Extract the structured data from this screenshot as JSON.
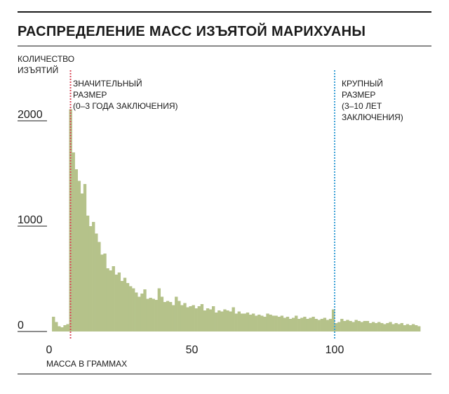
{
  "title": "РАСПРЕДЕЛЕНИЕ МАСС ИЗЪЯТОЙ МАРИХУАНЫ",
  "chart_data": {
    "type": "bar",
    "title": "РАСПРЕДЕЛЕНИЕ МАСС ИЗЪЯТОЙ МАРИХУАНЫ",
    "ylabel_lines": [
      "КОЛИЧЕСТВО",
      "ИЗЪЯТИЙ"
    ],
    "xlabel": "МАССА В ГРАММАХ",
    "xlim": [
      0,
      130
    ],
    "ylim": [
      0,
      2000
    ],
    "x_ticks": [
      0,
      50,
      100
    ],
    "y_ticks": [
      0,
      1000,
      2000
    ],
    "bar_color": "#b5c28a",
    "x": [
      2,
      3,
      4,
      5,
      6,
      7,
      8,
      9,
      10,
      11,
      12,
      13,
      14,
      15,
      16,
      17,
      18,
      19,
      20,
      21,
      22,
      23,
      24,
      25,
      26,
      27,
      28,
      29,
      30,
      31,
      32,
      33,
      34,
      35,
      36,
      37,
      38,
      39,
      40,
      41,
      42,
      43,
      44,
      45,
      46,
      47,
      48,
      49,
      50,
      51,
      52,
      53,
      54,
      55,
      56,
      57,
      58,
      59,
      60,
      61,
      62,
      63,
      64,
      65,
      66,
      67,
      68,
      69,
      70,
      71,
      72,
      73,
      74,
      75,
      76,
      77,
      78,
      79,
      80,
      81,
      82,
      83,
      84,
      85,
      86,
      87,
      88,
      89,
      90,
      91,
      92,
      93,
      94,
      95,
      96,
      97,
      98,
      99,
      100,
      101,
      102,
      103,
      104,
      105,
      106,
      107,
      108,
      109,
      110,
      111,
      112,
      113,
      114,
      115,
      116,
      117,
      118,
      119,
      120,
      121,
      122,
      123,
      124,
      125,
      126,
      127,
      128,
      129,
      130
    ],
    "values": [
      140,
      90,
      50,
      40,
      60,
      70,
      2110,
      1700,
      1540,
      1430,
      1310,
      1400,
      1100,
      1000,
      1040,
      930,
      850,
      730,
      740,
      600,
      580,
      620,
      540,
      560,
      480,
      510,
      460,
      430,
      410,
      370,
      330,
      360,
      400,
      310,
      320,
      310,
      300,
      410,
      330,
      280,
      290,
      280,
      250,
      330,
      290,
      250,
      270,
      230,
      240,
      250,
      220,
      240,
      260,
      200,
      220,
      210,
      240,
      180,
      200,
      190,
      210,
      200,
      190,
      230,
      170,
      190,
      170,
      170,
      180,
      160,
      170,
      150,
      160,
      150,
      140,
      170,
      160,
      150,
      150,
      140,
      150,
      130,
      140,
      120,
      130,
      150,
      120,
      130,
      140,
      120,
      130,
      140,
      120,
      110,
      120,
      130,
      110,
      120,
      210,
      80,
      90,
      120,
      100,
      110,
      100,
      90,
      110,
      100,
      90,
      100,
      100,
      80,
      90,
      80,
      90,
      80,
      70,
      80,
      90,
      70,
      80,
      70,
      80,
      60,
      70,
      60,
      70,
      60,
      50
    ],
    "reference_lines": [
      {
        "x": 7.5,
        "color": "#d94a5a",
        "label": [
          "ЗНАЧИТЕЛЬНЫЙ",
          "РАЗМЕР",
          "(0–3 ГОДА ЗАКЛЮЧЕНИЯ)"
        ]
      },
      {
        "x": 100,
        "color": "#3aa0d6",
        "label": [
          "КРУПНЫЙ",
          "РАЗМЕР",
          "(3–10 ЛЕТ",
          "ЗАКЛЮЧЕНИЯ)"
        ]
      }
    ]
  }
}
